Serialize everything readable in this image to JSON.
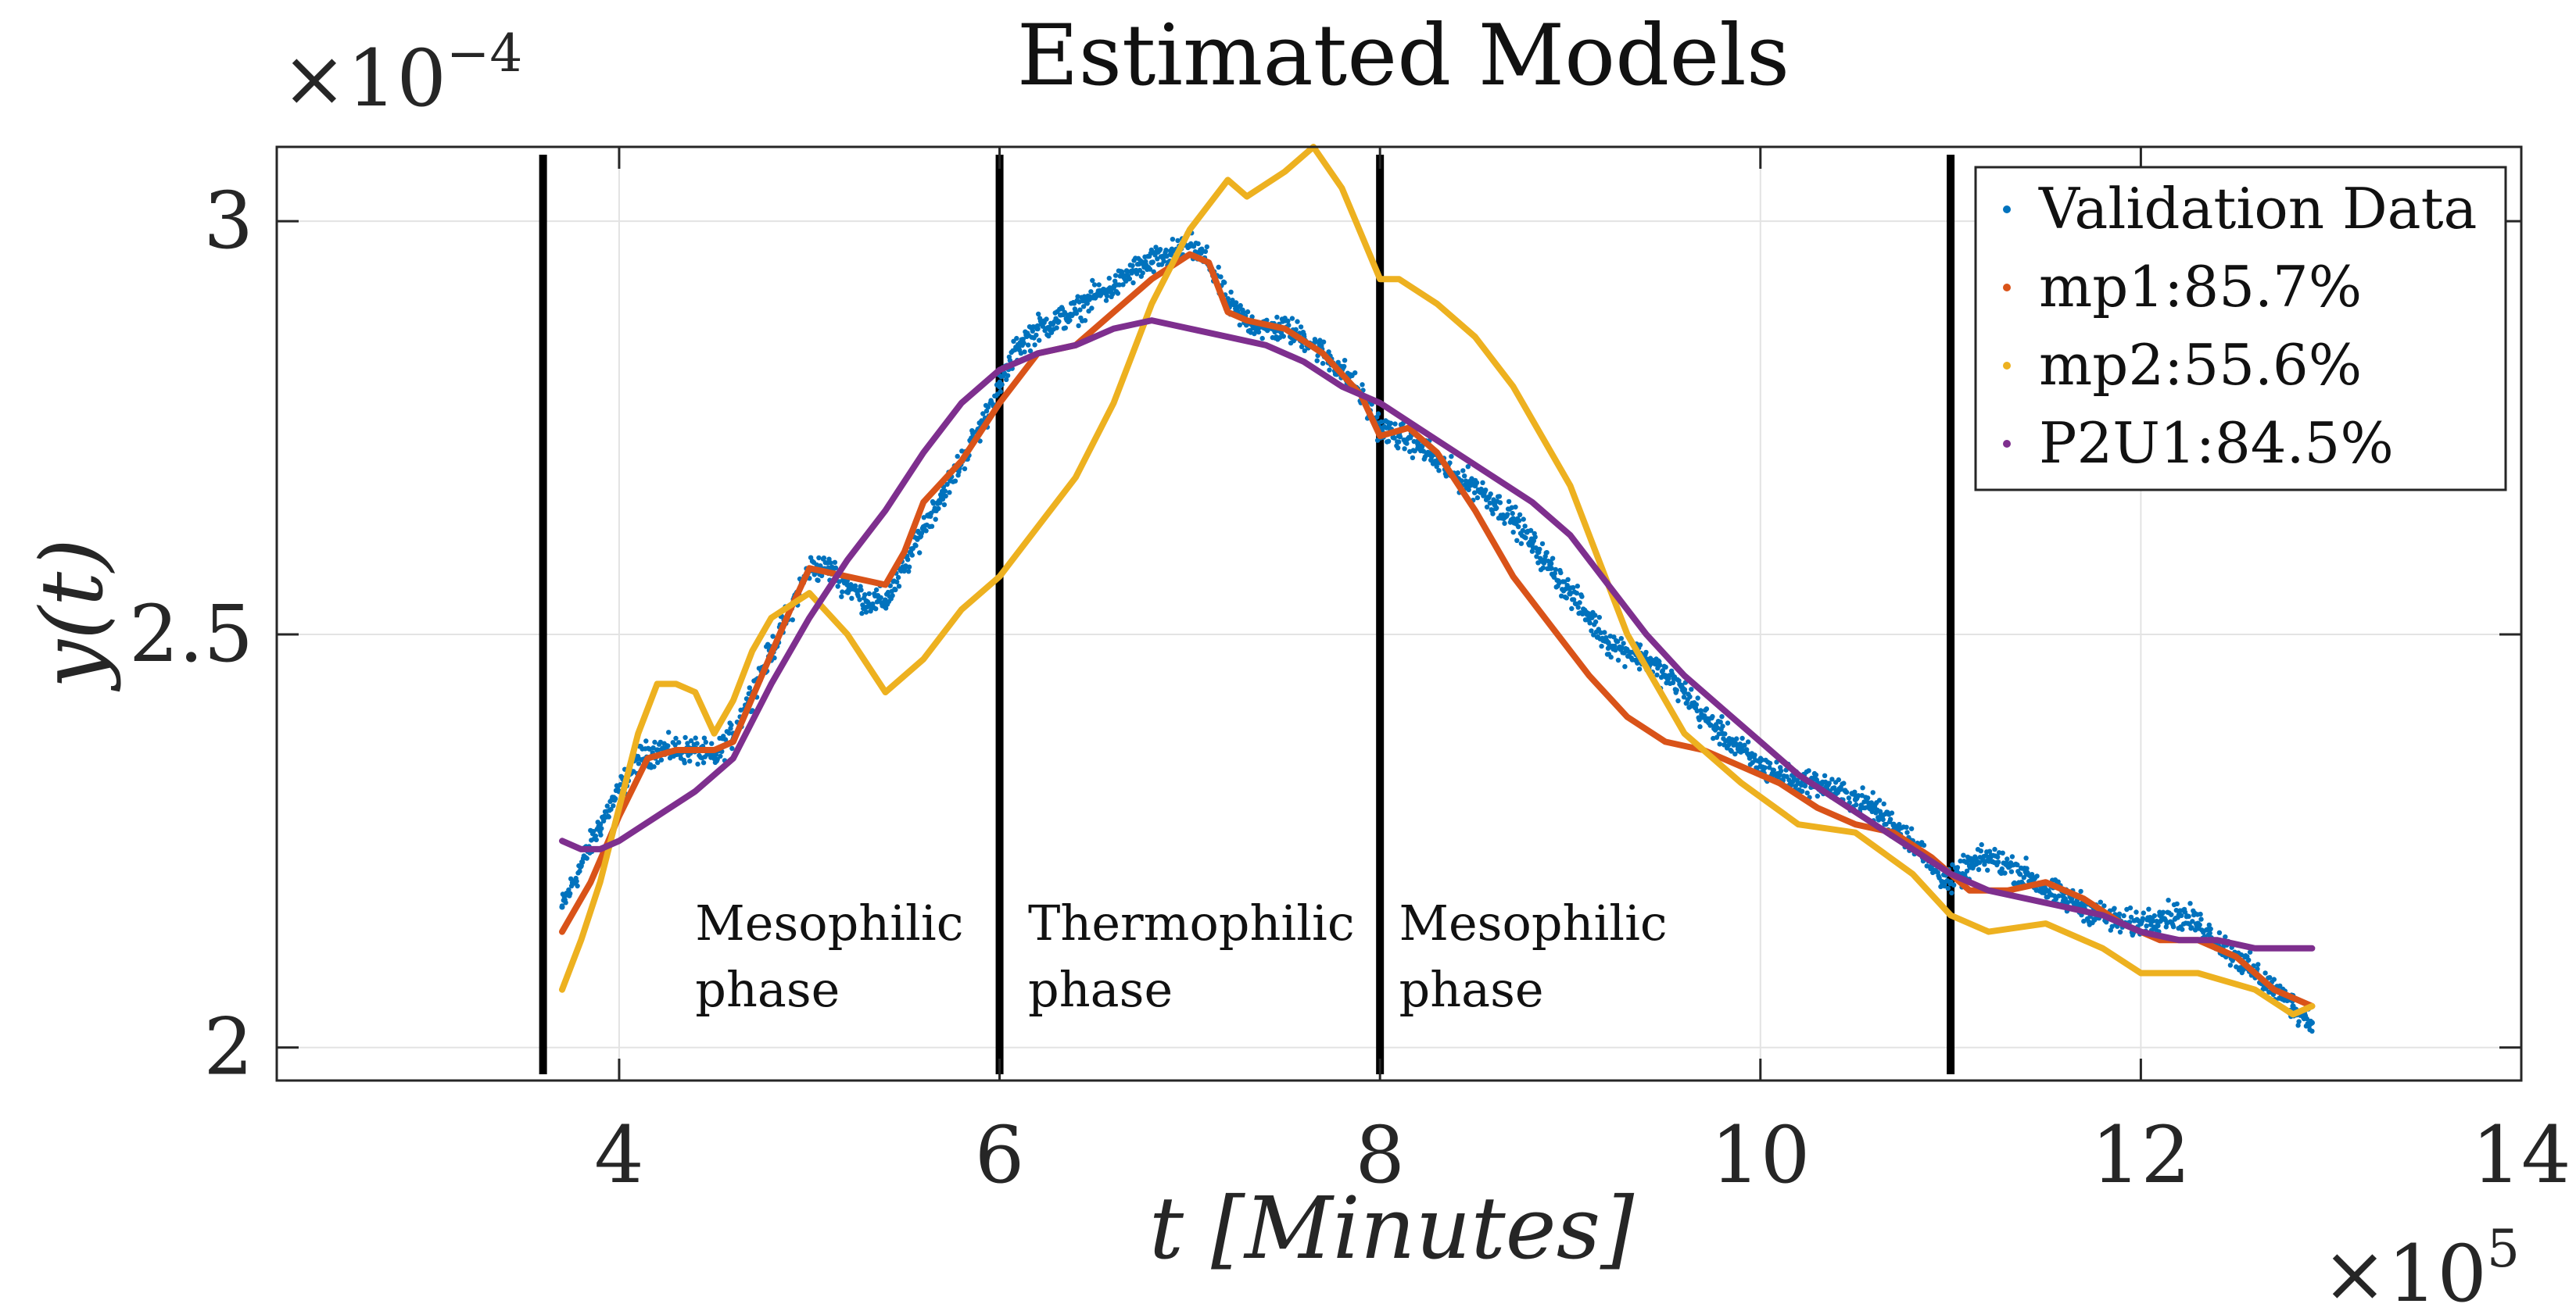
{
  "chart_data": {
    "type": "line",
    "title": "Estimated Models",
    "xlabel": "t [Minutes]",
    "ylabel": "y(t)",
    "x_multiplier_label": "×10",
    "x_multiplier_exp": "5",
    "y_multiplier_label": "×10",
    "y_multiplier_exp": "−4",
    "xlim": [
      2.2,
      14
    ],
    "ylim": [
      1.96,
      3.09
    ],
    "xticks": [
      4,
      6,
      8,
      10,
      12,
      14
    ],
    "xtick_labels": [
      "4",
      "6",
      "8",
      "10",
      "12",
      "14"
    ],
    "yticks": [
      2,
      2.5,
      3
    ],
    "ytick_labels": [
      "2",
      "2.5",
      "3"
    ],
    "grid": true,
    "legend_position": "top-right",
    "phase_boundaries": [
      3.6,
      6.0,
      8.0,
      11.0
    ],
    "phase_labels": [
      {
        "line1": "Mesophilic",
        "line2": "phase",
        "x": 4.4
      },
      {
        "line1": "Thermophilic",
        "line2": "phase",
        "x": 6.15
      },
      {
        "line1": "Mesophilic",
        "line2": "phase",
        "x": 8.1
      }
    ],
    "phase_label_y": [
      2.13,
      2.05
    ],
    "validation": {
      "name": "Validation Data",
      "color": "#0072BD",
      "x": [
        3.7,
        3.8,
        3.9,
        4.0,
        4.1,
        4.2,
        4.3,
        4.4,
        4.5,
        4.6,
        4.7,
        4.8,
        4.9,
        5.0,
        5.1,
        5.2,
        5.3,
        5.4,
        5.5,
        5.6,
        5.7,
        5.8,
        5.9,
        6.0,
        6.1,
        6.2,
        6.3,
        6.4,
        6.5,
        6.6,
        6.7,
        6.8,
        6.9,
        7.0,
        7.1,
        7.2,
        7.3,
        7.4,
        7.5,
        7.6,
        7.7,
        7.8,
        7.9,
        8.0,
        8.1,
        8.2,
        8.3,
        8.4,
        8.5,
        8.6,
        8.7,
        8.8,
        8.9,
        9.0,
        9.1,
        9.2,
        9.3,
        9.4,
        9.5,
        9.6,
        9.7,
        9.8,
        9.9,
        10.0,
        10.1,
        10.2,
        10.3,
        10.4,
        10.5,
        10.6,
        10.7,
        10.8,
        10.9,
        11.0,
        11.1,
        11.2,
        11.3,
        11.4,
        11.5,
        11.6,
        11.7,
        11.8,
        11.9,
        12.0,
        12.1,
        12.2,
        12.3,
        12.4,
        12.5,
        12.6,
        12.7,
        12.8,
        12.9
      ],
      "y": [
        2.17,
        2.22,
        2.27,
        2.31,
        2.35,
        2.36,
        2.36,
        2.36,
        2.35,
        2.38,
        2.43,
        2.48,
        2.53,
        2.58,
        2.58,
        2.56,
        2.54,
        2.54,
        2.58,
        2.63,
        2.67,
        2.71,
        2.75,
        2.8,
        2.85,
        2.87,
        2.88,
        2.89,
        2.91,
        2.92,
        2.94,
        2.95,
        2.96,
        2.97,
        2.95,
        2.9,
        2.88,
        2.87,
        2.87,
        2.86,
        2.84,
        2.82,
        2.79,
        2.75,
        2.74,
        2.73,
        2.71,
        2.69,
        2.68,
        2.66,
        2.64,
        2.61,
        2.58,
        2.55,
        2.52,
        2.49,
        2.48,
        2.47,
        2.45,
        2.43,
        2.4,
        2.38,
        2.36,
        2.34,
        2.33,
        2.32,
        2.32,
        2.31,
        2.3,
        2.29,
        2.27,
        2.25,
        2.22,
        2.2,
        2.22,
        2.23,
        2.22,
        2.21,
        2.19,
        2.18,
        2.17,
        2.16,
        2.15,
        2.15,
        2.16,
        2.16,
        2.15,
        2.13,
        2.11,
        2.09,
        2.07,
        2.05,
        2.03
      ]
    },
    "series": [
      {
        "name": "mp1:85.7%",
        "color": "#D95319",
        "x": [
          3.7,
          3.85,
          4.0,
          4.15,
          4.3,
          4.5,
          4.6,
          4.75,
          4.9,
          5.0,
          5.2,
          5.4,
          5.5,
          5.6,
          5.8,
          6.0,
          6.2,
          6.4,
          6.6,
          6.8,
          7.0,
          7.1,
          7.2,
          7.3,
          7.5,
          7.7,
          7.9,
          8.0,
          8.15,
          8.3,
          8.5,
          8.7,
          8.9,
          9.1,
          9.3,
          9.5,
          9.7,
          9.9,
          10.1,
          10.3,
          10.5,
          10.7,
          10.9,
          11.1,
          11.3,
          11.5,
          11.7,
          11.9,
          12.1,
          12.3,
          12.5,
          12.7,
          12.9
        ],
        "y": [
          2.14,
          2.2,
          2.28,
          2.35,
          2.36,
          2.36,
          2.37,
          2.45,
          2.53,
          2.58,
          2.57,
          2.56,
          2.6,
          2.66,
          2.71,
          2.78,
          2.84,
          2.85,
          2.89,
          2.93,
          2.96,
          2.95,
          2.89,
          2.88,
          2.87,
          2.84,
          2.79,
          2.74,
          2.75,
          2.72,
          2.65,
          2.57,
          2.51,
          2.45,
          2.4,
          2.37,
          2.36,
          2.34,
          2.32,
          2.29,
          2.27,
          2.26,
          2.23,
          2.19,
          2.19,
          2.2,
          2.18,
          2.15,
          2.13,
          2.13,
          2.11,
          2.07,
          2.05
        ]
      },
      {
        "name": "mp2:55.6%",
        "color": "#EDB120",
        "x": [
          3.7,
          3.8,
          3.9,
          4.0,
          4.1,
          4.2,
          4.3,
          4.4,
          4.5,
          4.6,
          4.7,
          4.8,
          5.0,
          5.2,
          5.4,
          5.6,
          5.8,
          6.0,
          6.2,
          6.4,
          6.6,
          6.8,
          7.0,
          7.2,
          7.3,
          7.5,
          7.65,
          7.8,
          8.0,
          8.1,
          8.3,
          8.5,
          8.7,
          9.0,
          9.3,
          9.6,
          9.9,
          10.2,
          10.5,
          10.8,
          11.0,
          11.2,
          11.5,
          11.8,
          12.0,
          12.3,
          12.6,
          12.8,
          12.9
        ],
        "y": [
          2.07,
          2.13,
          2.2,
          2.29,
          2.38,
          2.44,
          2.44,
          2.43,
          2.38,
          2.42,
          2.48,
          2.52,
          2.55,
          2.5,
          2.43,
          2.47,
          2.53,
          2.57,
          2.63,
          2.69,
          2.78,
          2.9,
          2.99,
          3.05,
          3.03,
          3.06,
          3.09,
          3.04,
          2.93,
          2.93,
          2.9,
          2.86,
          2.8,
          2.68,
          2.5,
          2.38,
          2.32,
          2.27,
          2.26,
          2.21,
          2.16,
          2.14,
          2.15,
          2.12,
          2.09,
          2.09,
          2.07,
          2.04,
          2.05
        ]
      },
      {
        "name": "P2U1:84.5%",
        "color": "#7E2F8E",
        "x": [
          3.7,
          3.8,
          3.9,
          4.0,
          4.2,
          4.4,
          4.6,
          4.8,
          5.0,
          5.2,
          5.4,
          5.6,
          5.8,
          5.9,
          6.0,
          6.2,
          6.4,
          6.6,
          6.8,
          7.0,
          7.2,
          7.4,
          7.6,
          7.8,
          8.0,
          8.2,
          8.4,
          8.6,
          8.8,
          9.0,
          9.2,
          9.4,
          9.6,
          9.8,
          10.0,
          10.2,
          10.4,
          10.6,
          10.8,
          11.0,
          11.2,
          11.4,
          11.6,
          11.8,
          12.0,
          12.2,
          12.4,
          12.6,
          12.8,
          12.9
        ],
        "y": [
          2.25,
          2.24,
          2.24,
          2.25,
          2.28,
          2.31,
          2.35,
          2.44,
          2.52,
          2.59,
          2.65,
          2.72,
          2.78,
          2.8,
          2.82,
          2.84,
          2.85,
          2.87,
          2.88,
          2.87,
          2.86,
          2.85,
          2.83,
          2.8,
          2.78,
          2.75,
          2.72,
          2.69,
          2.66,
          2.62,
          2.56,
          2.5,
          2.45,
          2.41,
          2.37,
          2.33,
          2.3,
          2.27,
          2.24,
          2.21,
          2.19,
          2.18,
          2.17,
          2.16,
          2.14,
          2.13,
          2.13,
          2.12,
          2.12,
          2.12
        ]
      }
    ]
  }
}
